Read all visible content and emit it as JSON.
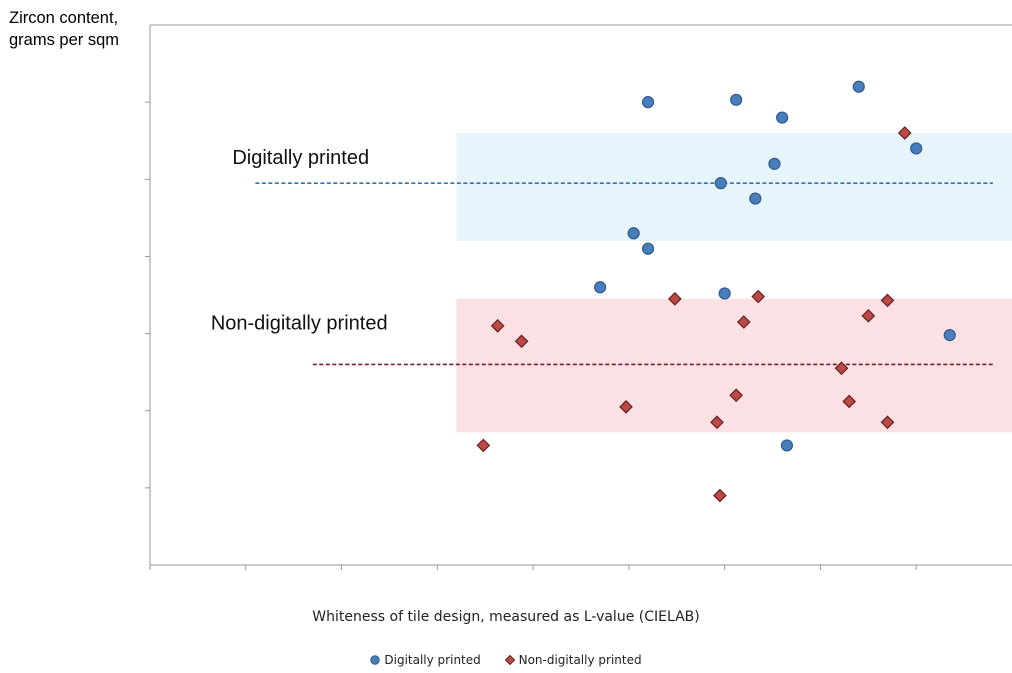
{
  "chart_data": {
    "type": "scatter",
    "title": "",
    "ylabel_lines": [
      "Zircon content,",
      "grams per sqm"
    ],
    "xlabel": "Whiteness of tile design, measured as L-value (CIELAB)",
    "xlim": [
      0,
      9
    ],
    "ylim": [
      0,
      7
    ],
    "grid": false,
    "axis_ticks_labeled": false,
    "legend_position": "bottom",
    "series": [
      {
        "name": "Digitally printed",
        "marker": "circle",
        "color": "#4a7ebb",
        "values": [
          {
            "x": 5.2,
            "y": 6.0
          },
          {
            "x": 6.12,
            "y": 6.03
          },
          {
            "x": 6.6,
            "y": 5.8
          },
          {
            "x": 7.4,
            "y": 6.2
          },
          {
            "x": 8.0,
            "y": 5.4
          },
          {
            "x": 6.52,
            "y": 5.2
          },
          {
            "x": 5.96,
            "y": 4.95
          },
          {
            "x": 6.32,
            "y": 4.75
          },
          {
            "x": 5.05,
            "y": 4.3
          },
          {
            "x": 5.2,
            "y": 4.1
          },
          {
            "x": 4.7,
            "y": 3.6
          },
          {
            "x": 6.0,
            "y": 3.52
          },
          {
            "x": 8.35,
            "y": 2.98
          },
          {
            "x": 6.65,
            "y": 1.55
          }
        ]
      },
      {
        "name": "Non-digitally printed",
        "marker": "diamond",
        "color": "#b94a48",
        "values": [
          {
            "x": 7.88,
            "y": 5.6
          },
          {
            "x": 5.48,
            "y": 3.45
          },
          {
            "x": 6.35,
            "y": 3.48
          },
          {
            "x": 7.7,
            "y": 3.43
          },
          {
            "x": 6.2,
            "y": 3.15
          },
          {
            "x": 7.5,
            "y": 3.23
          },
          {
            "x": 3.63,
            "y": 3.1
          },
          {
            "x": 3.88,
            "y": 2.9
          },
          {
            "x": 7.22,
            "y": 2.55
          },
          {
            "x": 4.97,
            "y": 2.05
          },
          {
            "x": 6.12,
            "y": 2.2
          },
          {
            "x": 7.3,
            "y": 2.12
          },
          {
            "x": 5.92,
            "y": 1.85
          },
          {
            "x": 7.7,
            "y": 1.85
          },
          {
            "x": 3.48,
            "y": 1.55
          },
          {
            "x": 5.95,
            "y": 0.9
          }
        ]
      }
    ],
    "bands": [
      {
        "label": "Digitally printed",
        "x_range": [
          3.2,
          9.0
        ],
        "y_range": [
          4.2,
          5.6
        ],
        "mean_y": 4.95,
        "mean_line_x": [
          1.1,
          8.8
        ],
        "fill": "#e6f4fb",
        "line_color": "#2e75b6"
      },
      {
        "label": "Non-digitally printed",
        "x_range": [
          3.2,
          9.0
        ],
        "y_range": [
          1.72,
          3.45
        ],
        "mean_y": 2.6,
        "mean_line_x": [
          1.7,
          8.8
        ],
        "fill": "#fbe0e4",
        "line_color": "#7a1f2a"
      }
    ]
  },
  "legend": {
    "items": [
      "Digitally printed",
      "Non-digitally printed"
    ]
  }
}
